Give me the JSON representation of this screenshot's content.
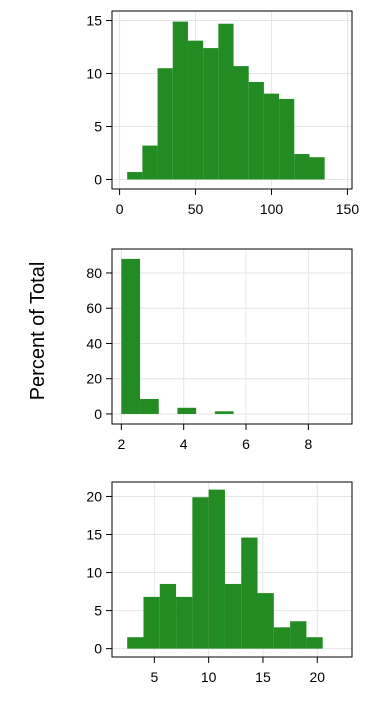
{
  "ylabel": "Percent of Total",
  "colors": {
    "bar": "#228b22",
    "grid": "#e6e6e6",
    "frame": "#000000"
  },
  "chart_data": [
    {
      "type": "bar",
      "histogram": true,
      "bin_edges": [
        5,
        15,
        25,
        35,
        45,
        55,
        65,
        75,
        85,
        95,
        105,
        115,
        125,
        135,
        145
      ],
      "values": [
        0.7,
        3.2,
        10.5,
        14.9,
        13.1,
        12.4,
        14.7,
        10.7,
        9.2,
        8.1,
        7.6,
        2.4,
        2.1,
        0
      ],
      "xticks": [
        "0",
        "50",
        "100",
        "150"
      ],
      "yticks": [
        "0",
        "5",
        "10",
        "15"
      ],
      "xlim": [
        -5,
        153
      ],
      "ylim": [
        -0.9,
        15.9
      ],
      "grid": true
    },
    {
      "type": "bar",
      "histogram": true,
      "bin_edges": [
        2,
        2.6,
        3.2,
        3.8,
        4.4,
        5.0,
        5.6,
        6.2,
        6.8,
        7.4,
        8.0,
        8.6,
        9.2
      ],
      "values": [
        88,
        8.5,
        0,
        3.5,
        0,
        1.5,
        0,
        0,
        0,
        0,
        0,
        0
      ],
      "xticks": [
        "2",
        "4",
        "6",
        "8"
      ],
      "yticks": [
        "0",
        "20",
        "40",
        "60",
        "80"
      ],
      "xlim": [
        1.7,
        9.4
      ],
      "ylim": [
        -5.7,
        93.6
      ],
      "grid": true
    },
    {
      "type": "bar",
      "histogram": true,
      "bin_edges": [
        2.5,
        4.0,
        5.5,
        7.0,
        8.5,
        10.0,
        11.5,
        13.0,
        14.5,
        16.0,
        17.5,
        19.0,
        20.5,
        22.0
      ],
      "values": [
        1.5,
        6.8,
        8.5,
        6.8,
        19.9,
        20.9,
        8.5,
        14.6,
        7.3,
        2.8,
        3.6,
        1.5,
        0
      ],
      "xticks": [
        "5",
        "10",
        "15",
        "20"
      ],
      "yticks": [
        "0",
        "5",
        "10",
        "15",
        "20"
      ],
      "xlim": [
        1.1,
        23.2
      ],
      "ylim": [
        -1.1,
        21.9
      ],
      "grid": true
    }
  ]
}
